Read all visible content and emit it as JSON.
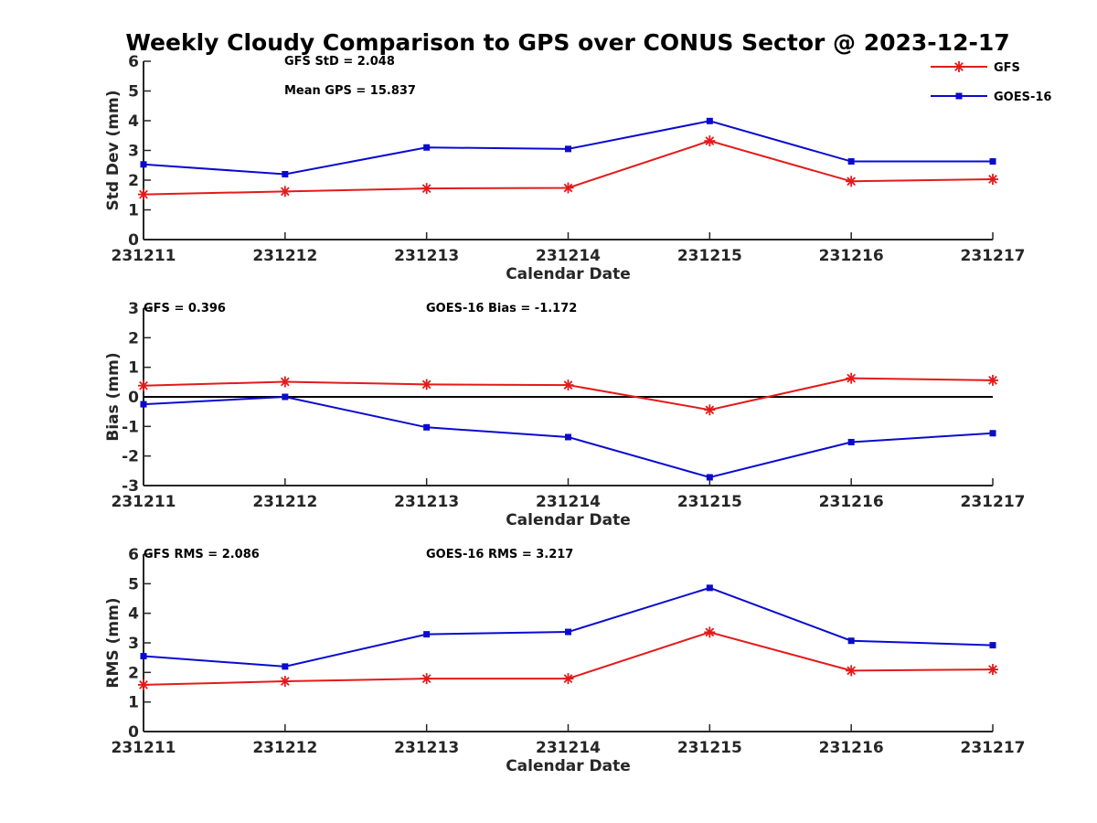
{
  "chart_data": {
    "type": "line",
    "title": "Weekly Cloudy Comparison to GPS over CONUS Sector @ 2023-12-17",
    "categories": [
      "231211",
      "231212",
      "231213",
      "231214",
      "231215",
      "231216",
      "231217"
    ],
    "legend": {
      "placement": "top-right",
      "entries": [
        {
          "name": "GFS",
          "color": "#e41a1a",
          "marker": "asterisk"
        },
        {
          "name": "GOES-16",
          "color": "#0a0ad0",
          "marker": "square"
        }
      ]
    },
    "panels": [
      {
        "id": "std",
        "ylabel": "Std Dev (mm)",
        "xlabel": "Calendar Date",
        "ylim": [
          0,
          6
        ],
        "yticks": [
          0,
          1,
          2,
          3,
          4,
          5,
          6
        ],
        "zero_line": false,
        "annotations": [
          "GFS StD = 2.048",
          "Mean GPS = 15.837"
        ],
        "series": [
          {
            "name": "GFS",
            "values": [
              1.52,
              1.62,
              1.72,
              1.74,
              3.32,
              1.96,
              2.03
            ]
          },
          {
            "name": "GOES-16",
            "values": [
              2.53,
              2.2,
              3.1,
              3.05,
              3.99,
              2.63,
              2.63
            ]
          }
        ]
      },
      {
        "id": "bias",
        "ylabel": "Bias (mm)",
        "xlabel": "Calendar Date",
        "ylim": [
          -3,
          3
        ],
        "yticks": [
          -3,
          -2,
          -1,
          0,
          1,
          2,
          3
        ],
        "zero_line": true,
        "annotations": [
          "GFS = 0.396",
          "GOES-16 Bias  = -1.172"
        ],
        "series": [
          {
            "name": "GFS",
            "values": [
              0.38,
              0.51,
              0.42,
              0.4,
              -0.44,
              0.63,
              0.56
            ]
          },
          {
            "name": "GOES-16",
            "values": [
              -0.25,
              0.0,
              -1.03,
              -1.36,
              -2.72,
              -1.53,
              -1.23
            ]
          }
        ]
      },
      {
        "id": "rms",
        "ylabel": "RMS (mm)",
        "xlabel": "Calendar Date",
        "ylim": [
          0,
          6
        ],
        "yticks": [
          0,
          1,
          2,
          3,
          4,
          5,
          6
        ],
        "zero_line": false,
        "annotations": [
          "GFS RMS = 2.086",
          "GOES-16 RMS = 3.217"
        ],
        "series": [
          {
            "name": "GFS",
            "values": [
              1.58,
              1.7,
              1.79,
              1.79,
              3.36,
              2.06,
              2.1
            ]
          },
          {
            "name": "GOES-16",
            "values": [
              2.55,
              2.2,
              3.29,
              3.37,
              4.86,
              3.07,
              2.92
            ]
          }
        ]
      }
    ]
  }
}
